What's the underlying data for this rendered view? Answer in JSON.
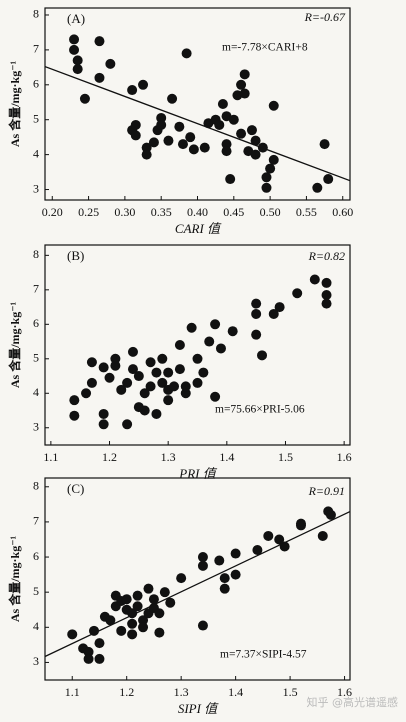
{
  "chart_data": [
    {
      "type": "scatter",
      "panel_label": "(A)",
      "annotation": "R=-0.67",
      "equation": {
        "label": "m=-7.78×CARI+8",
        "slope": -7.78,
        "intercept": 8
      },
      "y_label": "As 含量/mg·kg⁻¹",
      "x_label": "CARI 值",
      "xlim": [
        0.19,
        0.61
      ],
      "ylim": [
        2.7,
        8.2
      ],
      "xticks": [
        {
          "value": 0.2,
          "label": "0.20"
        },
        0.25,
        {
          "value": 0.3,
          "label": "0.30"
        },
        0.35,
        {
          "value": 0.4,
          "label": "0.40"
        },
        0.45,
        {
          "value": 0.5,
          "label": "0.50"
        },
        0.55,
        {
          "value": 0.6,
          "label": "0.60"
        }
      ],
      "yticks": [
        3,
        4,
        5,
        6,
        7,
        8
      ],
      "color": "#111111",
      "x": [
        0.23,
        0.23,
        0.235,
        0.235,
        0.245,
        0.265,
        0.265,
        0.28,
        0.31,
        0.31,
        0.315,
        0.315,
        0.325,
        0.33,
        0.33,
        0.34,
        0.345,
        0.35,
        0.35,
        0.36,
        0.365,
        0.375,
        0.38,
        0.385,
        0.39,
        0.395,
        0.41,
        0.415,
        0.425,
        0.43,
        0.435,
        0.44,
        0.44,
        0.44,
        0.445,
        0.45,
        0.455,
        0.46,
        0.46,
        0.465,
        0.465,
        0.47,
        0.475,
        0.48,
        0.48,
        0.49,
        0.495,
        0.495,
        0.5,
        0.505,
        0.505,
        0.565,
        0.575,
        0.58
      ],
      "values": [
        7.3,
        7.0,
        6.7,
        6.45,
        5.6,
        7.25,
        6.2,
        6.6,
        5.85,
        4.7,
        4.55,
        4.85,
        6.0,
        4.2,
        4.0,
        4.35,
        4.7,
        5.05,
        4.85,
        4.4,
        5.6,
        4.8,
        4.3,
        6.9,
        4.5,
        4.15,
        4.2,
        4.9,
        5.0,
        4.85,
        5.45,
        5.1,
        4.3,
        4.1,
        3.3,
        5.0,
        5.7,
        4.6,
        6.0,
        6.3,
        5.75,
        4.1,
        4.7,
        4.4,
        4.0,
        4.2,
        3.05,
        3.35,
        3.6,
        3.85,
        5.4,
        3.05,
        4.3,
        3.3
      ]
    },
    {
      "type": "scatter",
      "panel_label": "(B)",
      "annotation": "R=0.82",
      "equation": {
        "label": "m=75.66×PRI-5.06",
        "slope": 75.66,
        "intercept": -5.06
      },
      "y_label": "As 含量/mg·kg⁻¹",
      "x_label": "PRI 值",
      "xlim": [
        1.09,
        1.61
      ],
      "ylim": [
        2.5,
        8.3
      ],
      "xticks": [
        1.1,
        1.2,
        1.3,
        1.4,
        1.5,
        1.6
      ],
      "yticks": [
        3,
        4,
        5,
        6,
        7,
        8
      ],
      "color": "#111111",
      "x": [
        1.14,
        1.14,
        1.16,
        1.17,
        1.17,
        1.19,
        1.19,
        1.19,
        1.2,
        1.21,
        1.21,
        1.22,
        1.23,
        1.23,
        1.24,
        1.24,
        1.25,
        1.25,
        1.26,
        1.26,
        1.27,
        1.27,
        1.28,
        1.28,
        1.29,
        1.29,
        1.3,
        1.3,
        1.3,
        1.31,
        1.32,
        1.32,
        1.33,
        1.33,
        1.34,
        1.35,
        1.35,
        1.36,
        1.37,
        1.38,
        1.38,
        1.39,
        1.41,
        1.45,
        1.45,
        1.45,
        1.46,
        1.48,
        1.49,
        1.52,
        1.55,
        1.57,
        1.57,
        1.57
      ],
      "values": [
        3.35,
        3.8,
        4.0,
        4.3,
        4.9,
        3.4,
        3.1,
        4.75,
        4.45,
        4.8,
        5.0,
        4.1,
        3.1,
        4.3,
        5.2,
        4.7,
        3.6,
        4.5,
        4.0,
        3.5,
        4.2,
        4.9,
        3.4,
        4.6,
        4.3,
        5.0,
        4.1,
        3.8,
        4.6,
        4.2,
        5.4,
        4.7,
        4.0,
        4.2,
        5.9,
        4.3,
        5.0,
        4.6,
        5.5,
        3.9,
        6.0,
        5.3,
        5.8,
        6.6,
        6.3,
        5.7,
        5.1,
        6.3,
        6.5,
        6.9,
        7.3,
        7.2,
        6.85,
        6.6
      ]
    },
    {
      "type": "scatter",
      "panel_label": "(C)",
      "annotation": "R=0.91",
      "equation": {
        "label": "m=7.37×SIPI-4.57",
        "slope": 7.37,
        "intercept": -4.57
      },
      "y_label": "As 含量/mg·kg⁻¹",
      "x_label": "SIPI 值",
      "xlim": [
        1.05,
        1.61
      ],
      "ylim": [
        2.5,
        8.25
      ],
      "xticks": [
        1.1,
        1.2,
        1.3,
        1.4,
        1.5,
        1.6
      ],
      "yticks": [
        3,
        4,
        5,
        6,
        7,
        8
      ],
      "color": "#111111",
      "x": [
        1.1,
        1.12,
        1.13,
        1.13,
        1.14,
        1.15,
        1.15,
        1.16,
        1.17,
        1.18,
        1.18,
        1.19,
        1.19,
        1.2,
        1.2,
        1.21,
        1.21,
        1.21,
        1.22,
        1.22,
        1.23,
        1.23,
        1.24,
        1.24,
        1.25,
        1.25,
        1.26,
        1.26,
        1.27,
        1.28,
        1.3,
        1.34,
        1.34,
        1.34,
        1.37,
        1.38,
        1.38,
        1.4,
        1.4,
        1.44,
        1.46,
        1.48,
        1.49,
        1.52,
        1.52,
        1.56,
        1.57,
        1.575
      ],
      "values": [
        3.8,
        3.4,
        3.3,
        3.1,
        3.9,
        3.55,
        3.1,
        4.3,
        4.2,
        4.9,
        4.6,
        4.75,
        3.9,
        4.5,
        4.8,
        4.4,
        3.8,
        4.1,
        4.9,
        4.6,
        4.2,
        4.0,
        5.1,
        4.4,
        4.8,
        4.55,
        3.85,
        4.4,
        5.0,
        4.7,
        5.4,
        6.0,
        5.75,
        4.05,
        5.9,
        5.4,
        5.1,
        5.5,
        6.1,
        6.2,
        6.6,
        6.5,
        6.3,
        6.95,
        6.9,
        6.6,
        7.3,
        7.2
      ]
    }
  ],
  "watermark": "知乎 @高光谱遥感"
}
